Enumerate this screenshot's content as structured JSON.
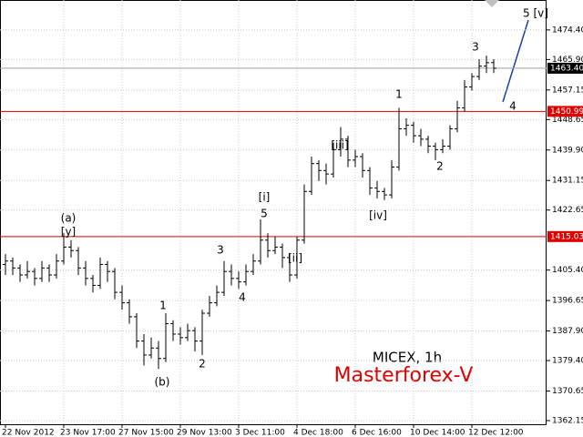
{
  "chart_data": {
    "type": "ohlc",
    "color": "#000000",
    "ohlc": [
      [
        1407,
        1410,
        1404,
        1408
      ],
      [
        1408,
        1409,
        1404,
        1406
      ],
      [
        1406,
        1407,
        1402,
        1404
      ],
      [
        1404,
        1408,
        1403,
        1405
      ],
      [
        1405,
        1406,
        1401,
        1403
      ],
      [
        1403,
        1408,
        1402,
        1406
      ],
      [
        1406,
        1407,
        1402,
        1404
      ],
      [
        1404,
        1410,
        1403,
        1408
      ],
      [
        1408,
        1416,
        1407,
        1412
      ],
      [
        1412,
        1414,
        1409,
        1411
      ],
      [
        1411,
        1412,
        1404,
        1406
      ],
      [
        1406,
        1408,
        1401,
        1403
      ],
      [
        1403,
        1404,
        1399,
        1401
      ],
      [
        1401,
        1409,
        1400,
        1407
      ],
      [
        1407,
        1408,
        1402,
        1405
      ],
      [
        1405,
        1406,
        1397,
        1399
      ],
      [
        1399,
        1401,
        1394,
        1396
      ],
      [
        1396,
        1397,
        1390,
        1392
      ],
      [
        1392,
        1393,
        1383,
        1385
      ],
      [
        1385,
        1387,
        1378,
        1381
      ],
      [
        1381,
        1386,
        1380,
        1383
      ],
      [
        1383,
        1385,
        1377,
        1380
      ],
      [
        1380,
        1393,
        1379,
        1390
      ],
      [
        1390,
        1391,
        1385,
        1387
      ],
      [
        1387,
        1389,
        1384,
        1386
      ],
      [
        1386,
        1390,
        1385,
        1388
      ],
      [
        1388,
        1389,
        1382,
        1385
      ],
      [
        1385,
        1394,
        1381,
        1393
      ],
      [
        1393,
        1398,
        1392,
        1396
      ],
      [
        1396,
        1401,
        1395,
        1399
      ],
      [
        1399,
        1408,
        1398,
        1405
      ],
      [
        1405,
        1407,
        1401,
        1403
      ],
      [
        1403,
        1405,
        1400,
        1402
      ],
      [
        1402,
        1407,
        1401,
        1405
      ],
      [
        1405,
        1410,
        1404,
        1408
      ],
      [
        1408,
        1420,
        1407,
        1414
      ],
      [
        1414,
        1416,
        1409,
        1411
      ],
      [
        1411,
        1415,
        1410,
        1412
      ],
      [
        1412,
        1413,
        1406,
        1409
      ],
      [
        1409,
        1410,
        1402,
        1404
      ],
      [
        1404,
        1415,
        1403,
        1414
      ],
      [
        1414,
        1430,
        1413,
        1428
      ],
      [
        1428,
        1438,
        1427,
        1436
      ],
      [
        1436,
        1437,
        1431,
        1434
      ],
      [
        1434,
        1436,
        1430,
        1433
      ],
      [
        1433,
        1442,
        1432,
        1440
      ],
      [
        1440,
        1446.5,
        1438,
        1443
      ],
      [
        1443,
        1444,
        1435,
        1437
      ],
      [
        1437,
        1440,
        1435,
        1438
      ],
      [
        1438,
        1439,
        1432,
        1434
      ],
      [
        1434,
        1435,
        1427,
        1429
      ],
      [
        1429,
        1431,
        1426,
        1428
      ],
      [
        1428,
        1429,
        1425.5,
        1427
      ],
      [
        1427,
        1437,
        1426,
        1435
      ],
      [
        1435,
        1452,
        1434,
        1446
      ],
      [
        1446,
        1449,
        1444,
        1447
      ],
      [
        1447,
        1448,
        1442,
        1444
      ],
      [
        1444,
        1446,
        1441,
        1443
      ],
      [
        1443,
        1444,
        1439,
        1441
      ],
      [
        1441,
        1442,
        1437,
        1440
      ],
      [
        1440,
        1443,
        1439,
        1441
      ],
      [
        1441,
        1447,
        1440,
        1446
      ],
      [
        1446,
        1454,
        1445,
        1452
      ],
      [
        1452,
        1460,
        1451,
        1458
      ],
      [
        1458,
        1462,
        1457,
        1461
      ],
      [
        1461,
        1466,
        1460,
        1464
      ],
      [
        1464,
        1467,
        1462,
        1465
      ],
      [
        1465,
        1466,
        1462,
        1463.4
      ]
    ],
    "xlim": [
      -0.75,
      74.25
    ],
    "xticks": [
      {
        "value": 0,
        "label": "22 Nov 2012"
      },
      {
        "value": 8,
        "label": "23 Nov 17:00"
      },
      {
        "value": 16,
        "label": "27 Nov 15:00"
      },
      {
        "value": 24,
        "label": "29 Nov 13:00"
      },
      {
        "value": 32,
        "label": "3 Dec 11:00"
      },
      {
        "value": 40,
        "label": "4 Dec 18:00"
      },
      {
        "value": 48,
        "label": "6 Dec 16:00"
      },
      {
        "value": 56,
        "label": "10 Dec 14:00"
      },
      {
        "value": 64,
        "label": "12 Dec 12:00"
      }
    ],
    "ylim": [
      1361.1,
      1483.0
    ],
    "yticks": [
      {
        "value": 1474.4,
        "label": "1474.40"
      },
      {
        "value": 1465.9,
        "label": "1465.90"
      },
      1457.15,
      1448.65,
      {
        "value": 1439.9,
        "label": "1439.90"
      },
      1431.15,
      1422.65,
      {
        "value": 1405.4,
        "label": "1405.40"
      },
      1396.65,
      {
        "value": 1387.9,
        "label": "1387.90"
      },
      {
        "value": 1379.4,
        "label": "1379.40"
      },
      1370.65,
      1362.15
    ],
    "grid": true,
    "levels": [
      {
        "value": 1450.99,
        "color": "#e00000"
      },
      {
        "value": 1415.03,
        "color": "#e00000"
      },
      {
        "value": 1463.4,
        "label": "1463.40",
        "color": "#000000",
        "line": "#a0a0a0"
      }
    ],
    "annotations": [
      "5 [v]",
      "4",
      "3",
      "1",
      "2",
      "[iii]",
      "[iv]",
      "[i]",
      "5",
      "[ii]",
      "3",
      "4",
      "1",
      "2",
      "(a)",
      "[y]",
      "(b)"
    ],
    "symbol": "MICEX, 1h",
    "brand": "Masterforex-V"
  }
}
